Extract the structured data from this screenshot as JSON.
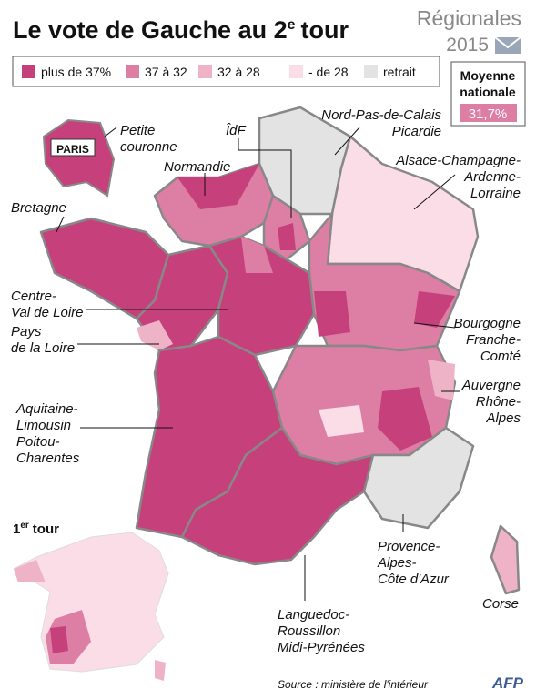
{
  "header": {
    "title": {
      "main": "Le vote de Gauche au 2",
      "sup": "e",
      "end": "tour"
    },
    "series": "Régionales",
    "year": "2015"
  },
  "legend": [
    {
      "label": "plus de 37%",
      "color": "#c6407c"
    },
    {
      "label": "37 à 32",
      "color": "#dd7ea4"
    },
    {
      "label": "32 à 28",
      "color": "#efb3c8"
    },
    {
      "label": "- de 28",
      "color": "#fbdde8"
    },
    {
      "label": "retrait",
      "color": "#e3e3e3"
    }
  ],
  "average": {
    "label": [
      "Moyenne",
      "nationale"
    ],
    "value": "31,7%"
  },
  "labels": [
    [
      "Petite",
      "couronne"
    ],
    [
      "PARIS"
    ],
    [
      "ÎdF"
    ],
    [
      "Nord-Pas-de-Calais",
      "Picardie"
    ],
    [
      "Normandie"
    ],
    [
      "Alsace-Champagne-",
      "Ardenne-",
      "Lorraine"
    ],
    [
      "Bretagne"
    ],
    [
      "Centre-",
      "Val de Loire"
    ],
    [
      "Pays",
      "de la Loire"
    ],
    [
      "Bourgogne",
      "Franche-",
      "Comté"
    ],
    [
      "Auvergne",
      "Rhône-",
      "Alpes"
    ],
    [
      "Aquitaine-",
      "Limousin",
      "Poitou-",
      "Charentes"
    ],
    [
      "Provence-",
      "Alpes-",
      "Côte d'Azur"
    ],
    [
      "Languedoc-",
      "Roussillon",
      "Midi-Pyrénées"
    ],
    [
      "Corse"
    ]
  ],
  "inset": {
    "title": {
      "main": "1",
      "sup": "er",
      "end": "tour"
    }
  },
  "source": "Source : ministère de l'intérieur",
  "credit": "AFP"
}
